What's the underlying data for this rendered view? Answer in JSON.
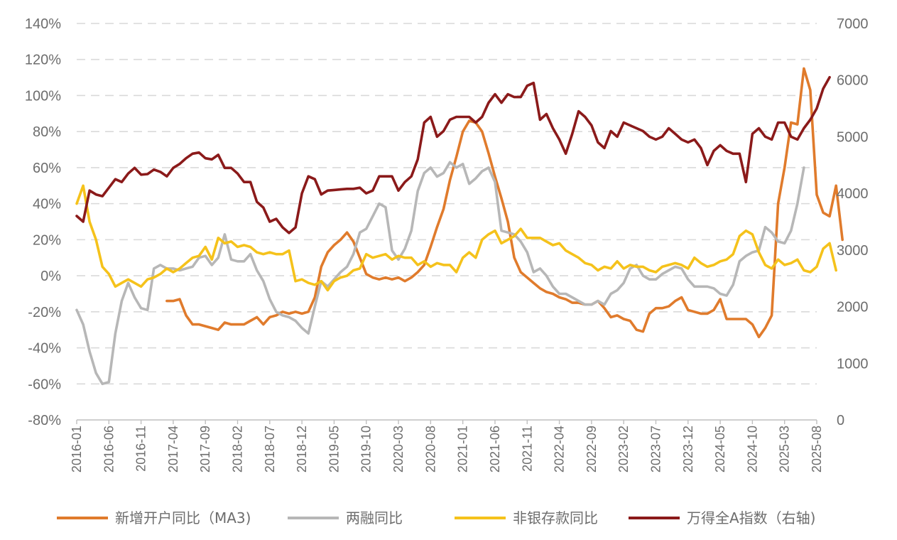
{
  "chart_data": {
    "type": "line",
    "title": "",
    "left_axis": {
      "ticks": [
        "-80%",
        "-60%",
        "-40%",
        "-20%",
        "0%",
        "20%",
        "40%",
        "60%",
        "80%",
        "100%",
        "120%",
        "140%"
      ],
      "min": -80,
      "max": 140,
      "step": 20,
      "unit": "%"
    },
    "right_axis": {
      "ticks": [
        "0",
        "1000",
        "2000",
        "3000",
        "4000",
        "5000",
        "6000",
        "7000"
      ],
      "min": 0,
      "max": 7000,
      "step": 1000
    },
    "x_axis": {
      "start": "2016-01",
      "end": "2025-08",
      "tick_labels": [
        "2016-01",
        "2016-06",
        "2016-11",
        "2017-04",
        "2017-09",
        "2018-02",
        "2018-07",
        "2018-12",
        "2019-05",
        "2019-10",
        "2020-03",
        "2020-08",
        "2021-01",
        "2021-06",
        "2021-11",
        "2022-04",
        "2022-09",
        "2023-02",
        "2023-07",
        "2023-12",
        "2024-05",
        "2024-10",
        "2025-03",
        "2025-08"
      ]
    },
    "legend_position": "bottom",
    "series": [
      {
        "name": "新增开户同比（MA3)",
        "axis": "left",
        "color": "#e07b2c",
        "start": "2017-03",
        "values": [
          -14,
          -14,
          -13,
          -22,
          -27,
          -27,
          -28,
          -29,
          -30,
          -26,
          -27,
          -27,
          -27,
          -25,
          -23,
          -27,
          -23,
          -22,
          -20,
          -21,
          -20,
          -21,
          -20,
          -12,
          5,
          13,
          17,
          20,
          24,
          19,
          10,
          1,
          -1,
          -2,
          -1,
          -2,
          -1,
          -3,
          -1,
          2,
          6,
          16,
          27,
          37,
          53,
          66,
          80,
          86,
          85,
          80,
          68,
          55,
          43,
          30,
          10,
          2,
          -1,
          -4,
          -7,
          -9,
          -10,
          -12,
          -13,
          -15,
          -15,
          -16,
          -16,
          -14,
          -18,
          -23,
          -22,
          -24,
          -25,
          -30,
          -31,
          -21,
          -18,
          -18,
          -17,
          -14,
          -12,
          -19,
          -20,
          -21,
          -21,
          -19,
          -13,
          -24,
          -24,
          -24,
          -24,
          -27,
          -34,
          -29,
          -22,
          40,
          60,
          85,
          84,
          115,
          103,
          45,
          35,
          33,
          50,
          20
        ]
      },
      {
        "name": "两融同比",
        "axis": "left",
        "color": "#b7b7b7",
        "start": "2016-01",
        "values": [
          -19,
          -27,
          -42,
          -54,
          -60,
          -59,
          -32,
          -14,
          -4,
          -12,
          -18,
          -19,
          4,
          6,
          4,
          4,
          3,
          4,
          5,
          10,
          11,
          6,
          10,
          23,
          9,
          8,
          8,
          12,
          3,
          -3,
          -13,
          -20,
          -22,
          -23,
          -25,
          -29,
          -32,
          -17,
          -3,
          -6,
          -2,
          2,
          5,
          12,
          24,
          26,
          33,
          40,
          38,
          14,
          9,
          15,
          25,
          47,
          57,
          60,
          55,
          57,
          63,
          60,
          62,
          51,
          54,
          58,
          60,
          52,
          25,
          24,
          23,
          19,
          13,
          2,
          4,
          0,
          -6,
          -10,
          -10,
          -12,
          -14,
          -16,
          -16,
          -14,
          -16,
          -10,
          -8,
          -4,
          4,
          6,
          0,
          -2,
          -2,
          1,
          3,
          5,
          4,
          -2,
          -6,
          -6,
          -6,
          -7,
          -10,
          -11,
          -5,
          8,
          11,
          13,
          14,
          27,
          24,
          19,
          18,
          25,
          40,
          60
        ]
      },
      {
        "name": "非银存款同比",
        "axis": "left",
        "color": "#f5c21b",
        "start": "2016-01",
        "values": [
          40,
          50,
          30,
          20,
          5,
          1,
          -6,
          -4,
          -2,
          -4,
          -6,
          -2,
          -1,
          1,
          4,
          2,
          4,
          7,
          10,
          11,
          16,
          9,
          21,
          18,
          19,
          16,
          17,
          16,
          13,
          12,
          13,
          12,
          12,
          14,
          -3,
          -2,
          -4,
          -5,
          -3,
          -8,
          -3,
          -1,
          0,
          3,
          4,
          12,
          10,
          11,
          12,
          9,
          11,
          10,
          10,
          6,
          8,
          5,
          7,
          6,
          6,
          2,
          10,
          13,
          10,
          20,
          23,
          25,
          18,
          20,
          22,
          26,
          21,
          21,
          21,
          19,
          17,
          18,
          14,
          12,
          10,
          7,
          6,
          3,
          5,
          4,
          8,
          4,
          6,
          5,
          5,
          3,
          2,
          5,
          6,
          7,
          6,
          4,
          10,
          7,
          5,
          6,
          8,
          9,
          12,
          22,
          25,
          23,
          13,
          6,
          4,
          9,
          6,
          7,
          9,
          3,
          2,
          5,
          15,
          18,
          3
        ]
      },
      {
        "name": "万得全A指数（右轴)",
        "axis": "right",
        "color": "#8b1a1a",
        "start": "2016-01",
        "values": [
          3600,
          3500,
          4050,
          3980,
          3950,
          4100,
          4250,
          4200,
          4350,
          4450,
          4330,
          4340,
          4420,
          4380,
          4300,
          4450,
          4520,
          4620,
          4700,
          4720,
          4620,
          4600,
          4680,
          4450,
          4450,
          4350,
          4200,
          4200,
          3850,
          3750,
          3500,
          3550,
          3400,
          3300,
          3400,
          4000,
          4300,
          4250,
          3980,
          4050,
          4060,
          4070,
          4080,
          4080,
          4100,
          4000,
          4050,
          4300,
          4300,
          4300,
          4050,
          4200,
          4300,
          4600,
          5250,
          5350,
          5000,
          5100,
          5300,
          5350,
          5350,
          5350,
          5250,
          5350,
          5600,
          5750,
          5600,
          5750,
          5700,
          5700,
          5900,
          5950,
          5300,
          5400,
          5150,
          4950,
          4700,
          5050,
          5450,
          5350,
          5200,
          4900,
          4800,
          5100,
          5000,
          5250,
          5200,
          5150,
          5100,
          5000,
          4950,
          5000,
          5150,
          5050,
          4950,
          4900,
          4950,
          4800,
          4500,
          4750,
          4850,
          4750,
          4700,
          4700,
          4200,
          5050,
          5150,
          5000,
          4950,
          5250,
          5250,
          5000,
          4950,
          5150,
          5300,
          5500,
          5850,
          6050
        ]
      }
    ]
  }
}
